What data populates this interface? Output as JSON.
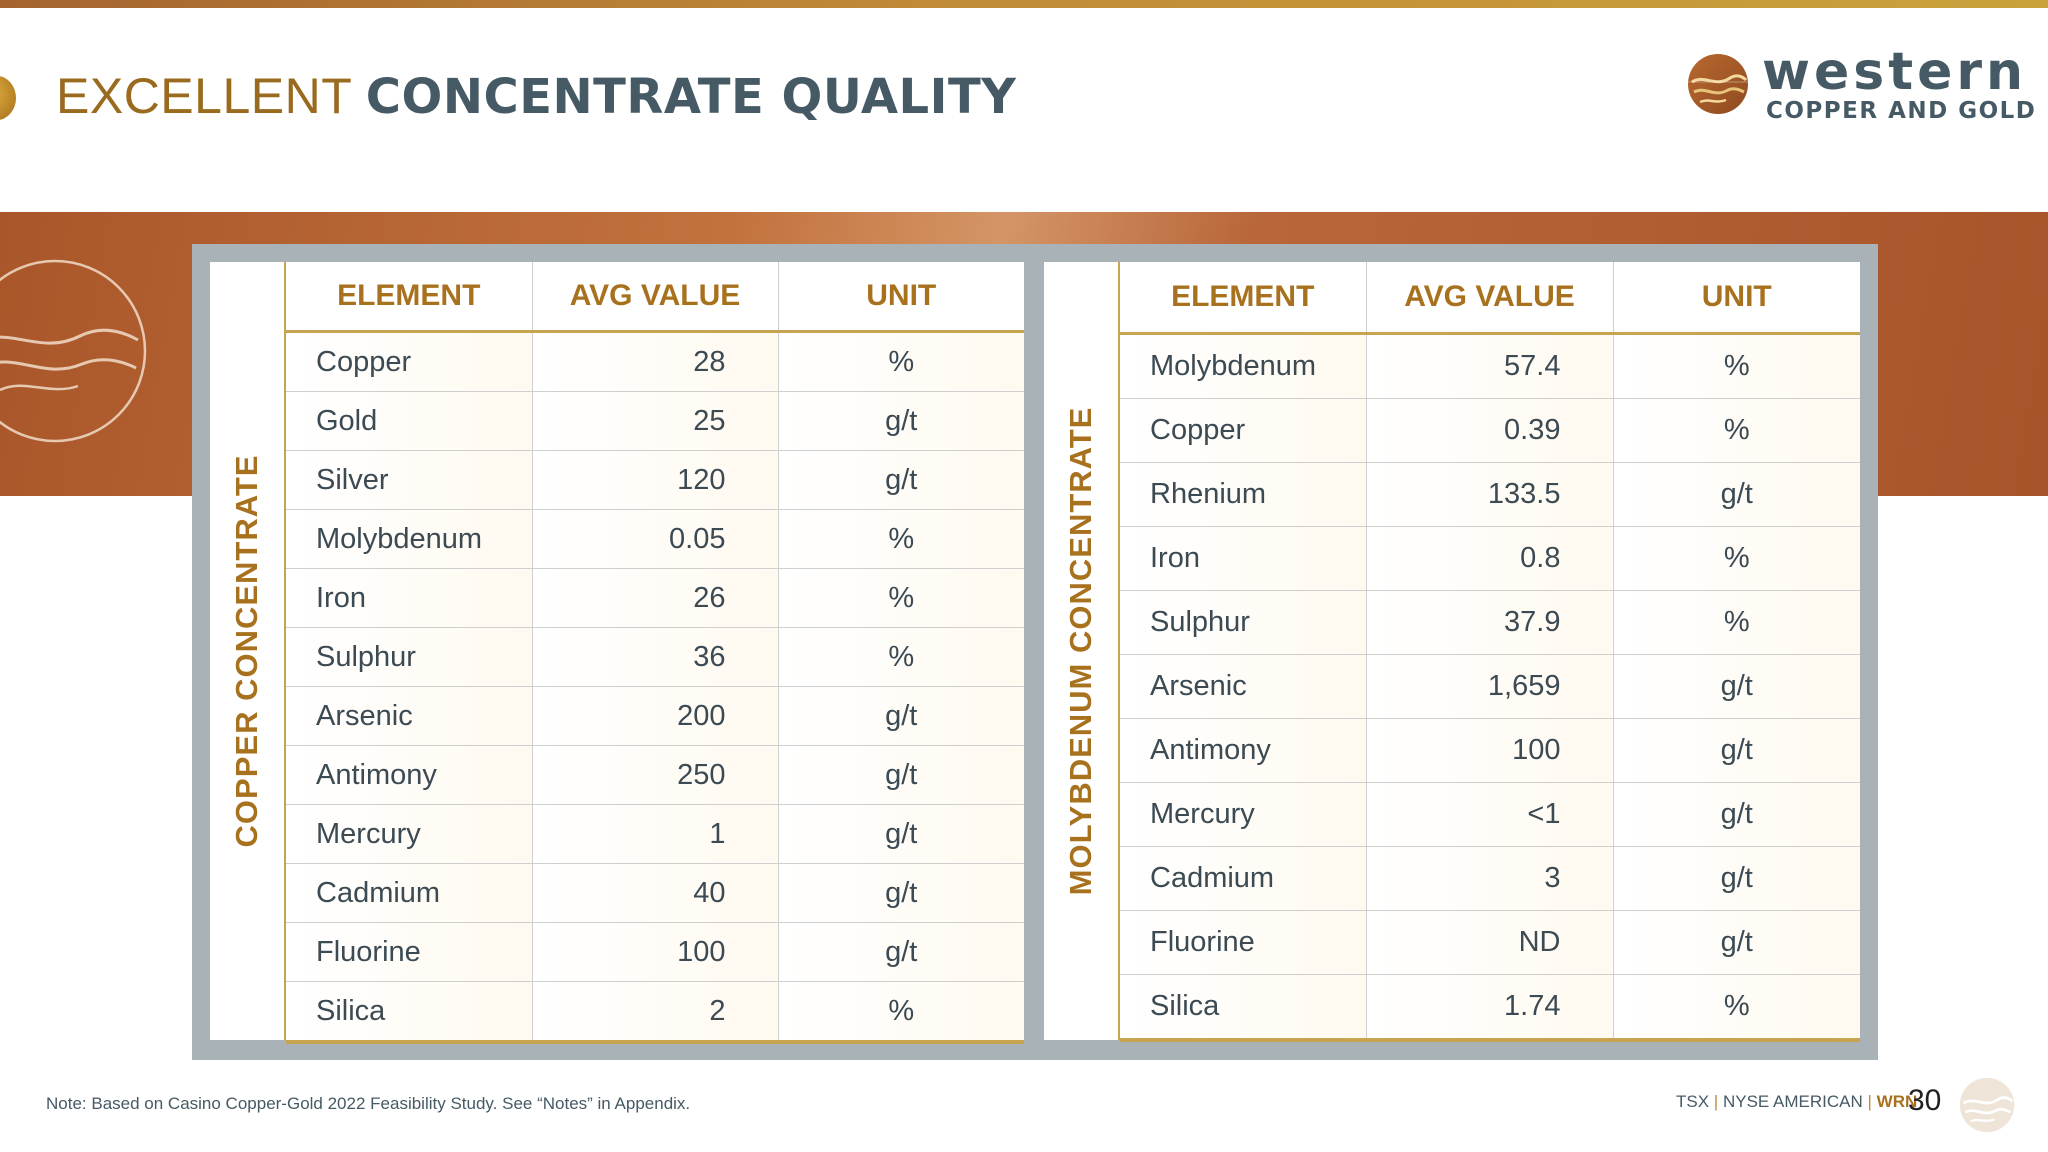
{
  "title": {
    "light": "EXCELLENT",
    "bold": "CONCENTRATE QUALITY"
  },
  "logo": {
    "text": "western COPPER AND GOLD",
    "mark_icon": "western-emblem-icon"
  },
  "colors": {
    "accent": "#a8711e",
    "slate": "#455a64",
    "band": "#b8663a",
    "frame": "#a9b2b7"
  },
  "copper_table": {
    "side_label": "COPPER CONCENTRATE",
    "headers": [
      "ELEMENT",
      "AVG VALUE",
      "UNIT"
    ],
    "rows": [
      {
        "element": "Copper",
        "value": "28",
        "unit": "%"
      },
      {
        "element": "Gold",
        "value": "25",
        "unit": "g/t"
      },
      {
        "element": "Silver",
        "value": "120",
        "unit": "g/t"
      },
      {
        "element": "Molybdenum",
        "value": "0.05",
        "unit": "%"
      },
      {
        "element": "Iron",
        "value": "26",
        "unit": "%"
      },
      {
        "element": "Sulphur",
        "value": "36",
        "unit": "%"
      },
      {
        "element": "Arsenic",
        "value": "200",
        "unit": "g/t"
      },
      {
        "element": "Antimony",
        "value": "250",
        "unit": "g/t"
      },
      {
        "element": "Mercury",
        "value": "1",
        "unit": "g/t"
      },
      {
        "element": "Cadmium",
        "value": "40",
        "unit": "g/t"
      },
      {
        "element": "Fluorine",
        "value": "100",
        "unit": "g/t"
      },
      {
        "element": "Silica",
        "value": "2",
        "unit": "%"
      }
    ]
  },
  "moly_table": {
    "side_label": "MOLYBDENUM CONCENTRATE",
    "headers": [
      "ELEMENT",
      "AVG VALUE",
      "UNIT"
    ],
    "rows": [
      {
        "element": "Molybdenum",
        "value": "57.4",
        "unit": "%"
      },
      {
        "element": "Copper",
        "value": "0.39",
        "unit": "%"
      },
      {
        "element": "Rhenium",
        "value": "133.5",
        "unit": "g/t"
      },
      {
        "element": "Iron",
        "value": "0.8",
        "unit": "%"
      },
      {
        "element": "Sulphur",
        "value": "37.9",
        "unit": "%"
      },
      {
        "element": "Arsenic",
        "value": "1,659",
        "unit": "g/t"
      },
      {
        "element": "Antimony",
        "value": "100",
        "unit": "g/t"
      },
      {
        "element": "Mercury",
        "value": "<1",
        "unit": "g/t"
      },
      {
        "element": "Cadmium",
        "value": "3",
        "unit": "g/t"
      },
      {
        "element": "Fluorine",
        "value": "ND",
        "unit": "g/t"
      },
      {
        "element": "Silica",
        "value": "1.74",
        "unit": "%"
      }
    ]
  },
  "footer": {
    "note": "Note: Based on Casino Copper-Gold 2022 Feasibility Study. See “Notes” in Appendix.",
    "exchange_1": "TSX",
    "separator": "|",
    "exchange_2": "NYSE AMERICAN",
    "ticker": "WRN",
    "page_number": "30"
  }
}
